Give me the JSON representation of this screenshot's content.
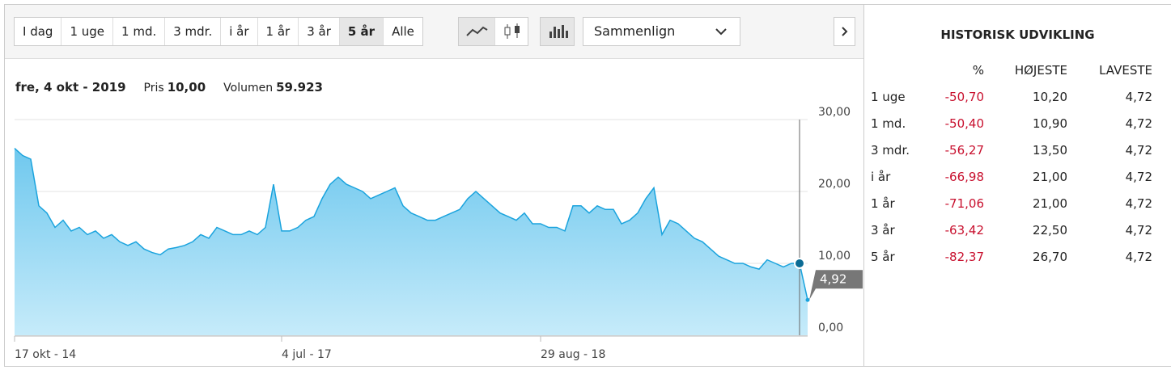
{
  "toolbar": {
    "ranges": [
      "I dag",
      "1 uge",
      "1 md.",
      "3 mdr.",
      "i år",
      "1 år",
      "3 år",
      "5 år",
      "Alle"
    ],
    "active_range": 7,
    "compare": "Sammenlign"
  },
  "info": {
    "date": "fre, 4 okt - 2019",
    "price_label": "Pris",
    "price": "10,00",
    "volume_label": "Volumen",
    "volume": "59.923"
  },
  "chart_data": {
    "type": "area",
    "color": "#1aa3dd",
    "hover_index": 97,
    "categories": [
      "17 okt - 14",
      null,
      null,
      null,
      null,
      null,
      null,
      null,
      null,
      null,
      null,
      null,
      null,
      null,
      null,
      null,
      null,
      null,
      null,
      null,
      null,
      null,
      null,
      null,
      null,
      null,
      null,
      null,
      null,
      null,
      null,
      null,
      null,
      "4 jul - 17",
      null,
      null,
      null,
      null,
      null,
      null,
      null,
      null,
      null,
      null,
      null,
      null,
      null,
      null,
      null,
      null,
      null,
      null,
      null,
      null,
      null,
      null,
      null,
      null,
      null,
      null,
      null,
      null,
      null,
      null,
      null,
      "29 aug - 18",
      null,
      null,
      null,
      null,
      null,
      null,
      null,
      null,
      null,
      null,
      null,
      null,
      null,
      null,
      null,
      null,
      null,
      null,
      null,
      null,
      null,
      null,
      null,
      null,
      null,
      null,
      null,
      null,
      null,
      null,
      null,
      null,
      null
    ],
    "values": [
      26,
      25,
      24.5,
      18,
      17,
      15,
      16,
      14.5,
      15,
      14,
      14.5,
      13.5,
      14,
      13,
      12.5,
      13,
      12,
      11.5,
      11.2,
      12,
      12.2,
      12.5,
      13,
      14,
      13.5,
      15,
      14.5,
      14,
      14,
      14.5,
      14,
      15,
      21,
      14.5,
      14.5,
      15,
      16,
      16.5,
      19,
      21,
      22,
      21,
      20.5,
      20,
      19,
      19.5,
      20,
      20.5,
      18,
      17,
      16.5,
      16,
      16,
      16.5,
      17,
      17.5,
      19,
      20,
      19,
      18,
      17,
      16.5,
      16,
      17,
      15.5,
      15.5,
      15,
      15,
      14.5,
      18,
      18,
      17,
      18,
      17.5,
      17.5,
      15.5,
      16,
      17,
      19,
      20.5,
      14,
      16,
      15.5,
      14.5,
      13.5,
      13,
      12,
      11,
      10.5,
      10,
      10,
      9.5,
      9.2,
      10.5,
      10,
      9.5,
      10,
      10,
      4.92
    ],
    "value_labels": [
      null,
      null,
      null,
      null,
      null,
      null,
      null,
      null,
      null,
      null,
      null,
      null,
      null,
      null,
      null,
      null,
      null,
      null,
      null,
      null,
      null,
      null,
      null,
      null,
      null,
      null,
      null,
      null,
      null,
      null,
      null,
      null,
      null,
      null,
      null,
      null,
      null,
      null,
      null,
      null,
      null,
      null,
      null,
      null,
      null,
      null,
      null,
      null,
      null,
      null,
      null,
      null,
      null,
      null,
      null,
      null,
      null,
      null,
      null,
      null,
      null,
      null,
      null,
      null,
      null,
      null,
      null,
      null,
      null,
      null,
      null,
      null,
      null,
      null,
      null,
      null,
      null,
      null,
      null,
      null,
      null,
      null,
      null,
      null,
      null,
      null,
      null,
      null,
      null,
      null,
      null,
      null,
      null,
      null,
      null,
      null,
      null,
      null,
      "4,92"
    ],
    "ylim": [
      0,
      30
    ],
    "yticks": [
      {
        "value": 0,
        "label": "0,00"
      },
      {
        "value": 10,
        "label": "10,00"
      },
      {
        "value": 20,
        "label": "20,00"
      },
      {
        "value": 30,
        "label": "30,00"
      }
    ],
    "grid": true
  },
  "history": {
    "title": "HISTORISK UDVIKLING",
    "headers": [
      "%",
      "HØJESTE",
      "LAVESTE"
    ],
    "rows": [
      [
        "1 uge",
        "-50,70",
        "10,20",
        "4,72"
      ],
      [
        "1 md.",
        "-50,40",
        "10,90",
        "4,72"
      ],
      [
        "3 mdr.",
        "-56,27",
        "13,50",
        "4,72"
      ],
      [
        "i år",
        "-66,98",
        "21,00",
        "4,72"
      ],
      [
        "1 år",
        "-71,06",
        "21,00",
        "4,72"
      ],
      [
        "3 år",
        "-63,42",
        "22,50",
        "4,72"
      ],
      [
        "5 år",
        "-82,37",
        "26,70",
        "4,72"
      ]
    ]
  }
}
